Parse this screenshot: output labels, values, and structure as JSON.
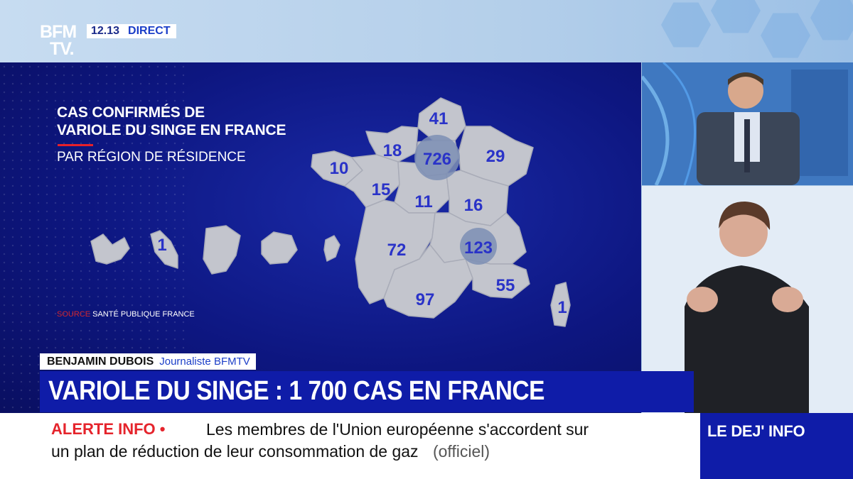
{
  "channel": {
    "logo_line1": "BFM",
    "logo_line2": "TV.",
    "time": "12.13",
    "live": "DIRECT"
  },
  "graphic": {
    "title_line1": "CAS CONFIRMÉS DE",
    "title_line2": "VARIOLE DU SINGE EN FRANCE",
    "subtitle": "PAR RÉGION DE RÉSIDENCE",
    "source_label": "SOURCE",
    "source_text": "SANTÉ PUBLIQUE FRANCE",
    "regions": [
      {
        "name": "Hauts-de-France",
        "cases": "41"
      },
      {
        "name": "Normandie",
        "cases": "18"
      },
      {
        "name": "Île-de-France",
        "cases": "726"
      },
      {
        "name": "Grand Est",
        "cases": "29"
      },
      {
        "name": "Bretagne",
        "cases": "10"
      },
      {
        "name": "Pays de la Loire",
        "cases": "15"
      },
      {
        "name": "Centre-Val de Loire",
        "cases": "11"
      },
      {
        "name": "Bourgogne-Franche-Comté",
        "cases": "16"
      },
      {
        "name": "Nouvelle-Aquitaine",
        "cases": "72"
      },
      {
        "name": "Auvergne-Rhône-Alpes",
        "cases": "123"
      },
      {
        "name": "Occitanie",
        "cases": "97"
      },
      {
        "name": "Provence-Alpes-Côte d'Azur",
        "cases": "55"
      },
      {
        "name": "Corse",
        "cases": "1"
      },
      {
        "name": "Martinique",
        "cases": "1"
      }
    ]
  },
  "lower_third": {
    "name": "BENJAMIN DUBOIS",
    "role": "Journaliste BFMTV",
    "headline": "VARIOLE DU SINGE : 1 700 CAS EN FRANCE"
  },
  "ticker": {
    "label": "ALERTE INFO •",
    "line1": "Les membres de l'Union européenne s'accordent sur",
    "line2": "un plan de réduction de leur consommation de gaz",
    "suffix": "(officiel)"
  },
  "show": {
    "name": "LE DEJ' INFO"
  },
  "colors": {
    "panel": "#0d1680",
    "number": "#2a33c8",
    "map_fill": "#c3c5cd",
    "alert": "#e5242c",
    "accent": "#0f1ca8"
  }
}
